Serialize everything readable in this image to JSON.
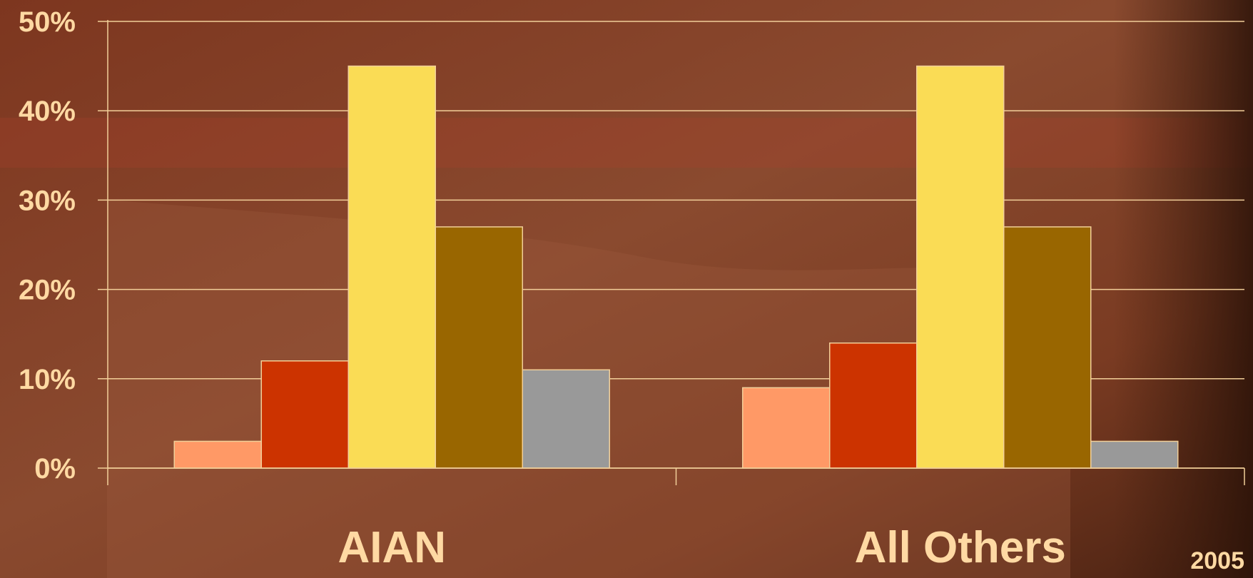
{
  "chart_data": {
    "type": "bar",
    "categories": [
      "AIAN",
      "All Others"
    ],
    "series": [
      {
        "values": [
          3,
          9
        ],
        "color": "#ff9966"
      },
      {
        "values": [
          12,
          14
        ],
        "color": "#cc3300"
      },
      {
        "values": [
          45,
          45
        ],
        "color": "#fadc55"
      },
      {
        "values": [
          27,
          27
        ],
        "color": "#996600"
      },
      {
        "values": [
          11,
          3
        ],
        "color": "#999999"
      }
    ],
    "ylim": [
      0,
      50
    ],
    "yticks": [
      0,
      10,
      20,
      30,
      40,
      50
    ],
    "ytick_labels": [
      "0%",
      "10%",
      "20%",
      "30%",
      "40%",
      "50%"
    ],
    "grid": true,
    "annotation": "2005",
    "text_color": "#ffd9a3",
    "grid_color": "#f2cf99"
  }
}
